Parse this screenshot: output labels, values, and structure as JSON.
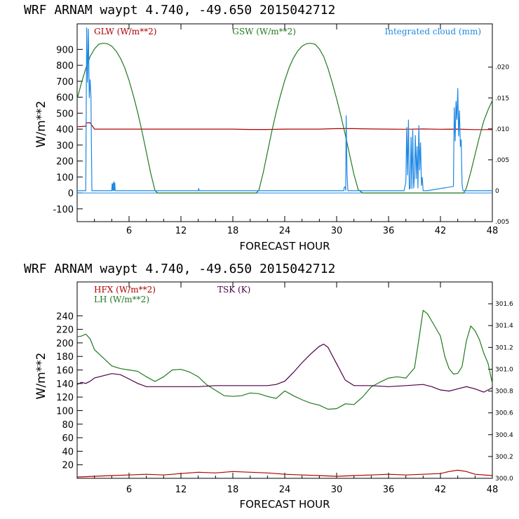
{
  "chart_data": [
    {
      "type": "line",
      "title": "WRF  ARNAM waypt    4.740, -49.650  2015042712",
      "xlabel": "FORECAST HOUR",
      "ylabel": "W/m**2",
      "xlim": [
        0,
        48
      ],
      "ylim": [
        -180,
        1060
      ],
      "x_ticks": [
        6,
        12,
        18,
        24,
        30,
        36,
        42,
        48
      ],
      "y_ticks": [
        -100,
        0,
        100,
        200,
        300,
        400,
        500,
        600,
        700,
        800,
        900
      ],
      "right_axis": {
        "label": "Integrated cloud (mm)",
        "lim": [
          -0.005,
          0.027
        ],
        "ticks": [
          -0.005,
          0,
          0.005,
          0.01,
          0.015,
          0.02
        ],
        "tick_labels": [
          ".005",
          "0",
          ".005",
          ".010",
          ".015",
          ".020"
        ]
      },
      "series": [
        {
          "name": "GLW (W/m**2)",
          "color": "#b00000",
          "x": [
            0,
            1,
            1.05,
            1.5,
            2,
            4,
            6,
            8,
            10,
            12,
            14,
            16,
            18,
            20,
            22,
            24,
            26,
            28,
            30,
            32,
            34,
            36,
            38,
            40,
            42,
            44,
            46,
            48
          ],
          "y": [
            415,
            418,
            440,
            440,
            400,
            400,
            400,
            400,
            400,
            400,
            400,
            400,
            400,
            398,
            398,
            400,
            400,
            400,
            403,
            403,
            401,
            400,
            399,
            401,
            399,
            400,
            397,
            397
          ]
        },
        {
          "name": "GSW (W/m**2)",
          "color": "#207a20",
          "x": [
            0,
            0.5,
            1,
            1.5,
            2,
            2.5,
            3,
            3.5,
            4,
            4.5,
            5,
            5.5,
            6,
            6.5,
            7,
            7.5,
            8,
            8.5,
            9,
            9.3,
            20.7,
            21,
            21.5,
            22,
            22.5,
            23,
            23.5,
            24,
            24.5,
            25,
            25.5,
            26,
            26.5,
            27,
            27.5,
            28,
            28.5,
            29,
            29.5,
            30,
            30.5,
            31,
            31.5,
            32,
            32.5,
            33,
            33.3,
            44.7,
            45,
            45.5,
            46,
            46.5,
            47,
            47.5,
            48
          ],
          "y": [
            590,
            690,
            780,
            855,
            903,
            932,
            938,
            935,
            920,
            890,
            845,
            785,
            705,
            610,
            505,
            385,
            255,
            125,
            15,
            0,
            0,
            15,
            125,
            255,
            385,
            505,
            610,
            705,
            785,
            845,
            890,
            920,
            935,
            938,
            932,
            903,
            855,
            780,
            690,
            590,
            480,
            365,
            240,
            115,
            20,
            0,
            0,
            0,
            30,
            130,
            240,
            350,
            450,
            520,
            580
          ]
        },
        {
          "name": "Integrated cloud (mm)",
          "color": "#1e88e5",
          "axis": "right",
          "x": [
            0,
            1,
            1.1,
            1.2,
            1.3,
            1.4,
            1.5,
            1.6,
            1.7,
            2,
            4,
            4.05,
            4.1,
            4.15,
            4.2,
            4.25,
            4.3,
            4.35,
            4.4,
            4.5,
            14,
            14.05,
            14.1,
            14.2,
            30.8,
            30.9,
            31,
            31.05,
            31.1,
            31.2,
            31.3,
            31.4,
            31.5,
            37.8,
            38,
            38.1,
            38.2,
            38.3,
            38.4,
            38.5,
            38.6,
            38.7,
            38.8,
            38.9,
            39,
            39.1,
            39.2,
            39.3,
            39.4,
            39.5,
            39.6,
            39.7,
            39.8,
            39.9,
            40,
            40.1,
            40.2,
            40.3,
            40.4,
            40.5,
            43.5,
            43.6,
            43.7,
            43.8,
            43.9,
            44,
            44.1,
            44.2,
            44.3,
            44.4,
            44.5,
            44.6,
            44.7,
            44.8,
            48
          ],
          "y": [
            0,
            0,
            0.0264,
            0.0175,
            0.0262,
            0.015,
            0.018,
            0.015,
            0,
            0,
            0,
            0.0012,
            0,
            0.0012,
            0,
            0.0015,
            0,
            0.0013,
            0,
            0,
            0,
            0.0004,
            0,
            0,
            0,
            0.0006,
            0.0006,
            0,
            0.0122,
            0.0026,
            0,
            0,
            0,
            0,
            0.0014,
            0.0103,
            0.0025,
            0.0115,
            0.0003,
            0.0004,
            0.0087,
            0.0003,
            0.0099,
            0.0004,
            0.0024,
            0.009,
            0.0019,
            0.0072,
            0.0004,
            0.0106,
            0.0033,
            0.0078,
            0.0008,
            0.0022,
            0,
            0,
            0,
            0,
            0,
            0,
            0.0007,
            0.0135,
            0.008,
            0.0145,
            0.0115,
            0.0166,
            0.0088,
            0.013,
            0.0071,
            0.0083,
            0.0011,
            0,
            0,
            0,
            0
          ]
        }
      ]
    },
    {
      "type": "line",
      "title": "WRF  ARNAM waypt    4.740, -49.650  2015042712",
      "xlabel": "FORECAST HOUR",
      "ylabel": "W/m**2",
      "xlim": [
        0,
        48
      ],
      "ylim": [
        0,
        290
      ],
      "x_ticks": [
        6,
        12,
        18,
        24,
        30,
        36,
        42,
        48
      ],
      "y_ticks": [
        20,
        40,
        60,
        80,
        100,
        120,
        140,
        160,
        180,
        200,
        220,
        240
      ],
      "right_axis": {
        "label": "TSK (K)",
        "lim": [
          300.0,
          301.8
        ],
        "ticks": [
          300.0,
          300.2,
          300.4,
          300.6,
          300.8,
          301.0,
          301.2,
          301.4,
          301.6
        ],
        "tick_labels": [
          "300.0",
          "300.2",
          "300.4",
          "300.6",
          "300.8",
          "301.0",
          "301.2",
          "301.4",
          "301.6"
        ]
      },
      "series": [
        {
          "name": "HFX (W/m**2)",
          "color": "#b00000",
          "x": [
            0,
            2,
            4,
            6,
            8,
            10,
            12,
            14,
            16,
            18,
            20,
            22,
            24,
            26,
            28,
            30,
            32,
            34,
            36,
            38,
            40,
            42,
            43,
            44,
            45,
            46,
            48
          ],
          "y": [
            2,
            3,
            4,
            5,
            6,
            5,
            7,
            9,
            8,
            10,
            9,
            8,
            6,
            5,
            4,
            3,
            4,
            5,
            6,
            5,
            6,
            7,
            10,
            12,
            10,
            6,
            4
          ]
        },
        {
          "name": "LH  (W/m**2)",
          "color": "#207a20",
          "x": [
            0,
            0.5,
            1,
            1.5,
            2,
            3,
            4,
            5,
            6,
            7,
            8,
            9,
            10,
            11,
            12,
            13,
            14,
            15,
            16,
            17,
            18,
            19,
            20,
            21,
            22,
            23,
            24,
            25,
            26,
            27,
            28,
            29,
            30,
            31,
            32,
            33,
            34,
            35,
            36,
            37,
            38,
            39,
            39.5,
            40,
            40.5,
            41,
            42,
            42.5,
            43,
            43.5,
            44,
            44.5,
            45,
            45.5,
            46,
            46.5,
            47,
            47.5,
            48
          ],
          "y": [
            209,
            210,
            213,
            206,
            190,
            178,
            166,
            162,
            160,
            158,
            150,
            143,
            150,
            160,
            161,
            157,
            150,
            138,
            130,
            122,
            121,
            122,
            126,
            125,
            121,
            118,
            129,
            122,
            116,
            111,
            108,
            102,
            103,
            110,
            109,
            120,
            135,
            142,
            148,
            150,
            148,
            163,
            205,
            248,
            243,
            232,
            210,
            180,
            162,
            154,
            155,
            165,
            203,
            225,
            218,
            205,
            185,
            170,
            140
          ]
        },
        {
          "name": "TSK (K)",
          "color": "#4a0046",
          "axis": "right",
          "x": [
            0,
            0.5,
            1,
            1.5,
            2,
            3,
            4,
            5,
            6,
            7,
            8,
            9,
            10,
            12,
            14,
            16,
            18,
            20,
            22,
            23,
            24,
            25,
            26,
            27,
            28,
            28.5,
            29,
            30,
            31,
            32,
            34,
            36,
            38,
            40,
            41,
            42,
            43,
            44,
            45,
            46,
            47,
            48
          ],
          "y": [
            300.86,
            300.88,
            300.87,
            300.89,
            300.92,
            300.94,
            300.96,
            300.95,
            300.91,
            300.87,
            300.84,
            300.84,
            300.84,
            300.84,
            300.84,
            300.85,
            300.85,
            300.85,
            300.85,
            300.86,
            300.89,
            300.97,
            301.06,
            301.14,
            301.21,
            301.23,
            301.2,
            301.05,
            300.9,
            300.85,
            300.85,
            300.84,
            300.85,
            300.86,
            300.84,
            300.81,
            300.8,
            300.82,
            300.84,
            300.82,
            300.79,
            300.83
          ]
        }
      ]
    }
  ]
}
